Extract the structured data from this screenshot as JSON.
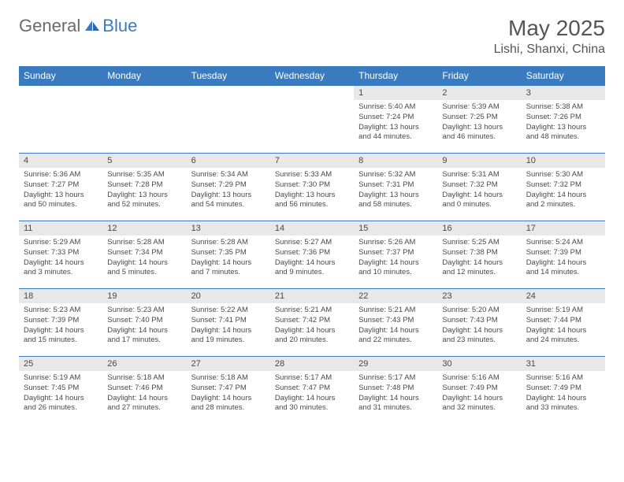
{
  "logo": {
    "general": "General",
    "blue": "Blue"
  },
  "title": "May 2025",
  "location": "Lishi, Shanxi, China",
  "colors": {
    "header_bg": "#3a7bbf",
    "header_fg": "#ffffff",
    "daynum_bg": "#e8e8e8",
    "text": "#494949",
    "border": "#3a7bbf"
  },
  "daysOfWeek": [
    "Sunday",
    "Monday",
    "Tuesday",
    "Wednesday",
    "Thursday",
    "Friday",
    "Saturday"
  ],
  "weeks": [
    [
      null,
      null,
      null,
      null,
      {
        "n": "1",
        "sunrise": "5:40 AM",
        "sunset": "7:24 PM",
        "daylight": "13 hours and 44 minutes."
      },
      {
        "n": "2",
        "sunrise": "5:39 AM",
        "sunset": "7:25 PM",
        "daylight": "13 hours and 46 minutes."
      },
      {
        "n": "3",
        "sunrise": "5:38 AM",
        "sunset": "7:26 PM",
        "daylight": "13 hours and 48 minutes."
      }
    ],
    [
      {
        "n": "4",
        "sunrise": "5:36 AM",
        "sunset": "7:27 PM",
        "daylight": "13 hours and 50 minutes."
      },
      {
        "n": "5",
        "sunrise": "5:35 AM",
        "sunset": "7:28 PM",
        "daylight": "13 hours and 52 minutes."
      },
      {
        "n": "6",
        "sunrise": "5:34 AM",
        "sunset": "7:29 PM",
        "daylight": "13 hours and 54 minutes."
      },
      {
        "n": "7",
        "sunrise": "5:33 AM",
        "sunset": "7:30 PM",
        "daylight": "13 hours and 56 minutes."
      },
      {
        "n": "8",
        "sunrise": "5:32 AM",
        "sunset": "7:31 PM",
        "daylight": "13 hours and 58 minutes."
      },
      {
        "n": "9",
        "sunrise": "5:31 AM",
        "sunset": "7:32 PM",
        "daylight": "14 hours and 0 minutes."
      },
      {
        "n": "10",
        "sunrise": "5:30 AM",
        "sunset": "7:32 PM",
        "daylight": "14 hours and 2 minutes."
      }
    ],
    [
      {
        "n": "11",
        "sunrise": "5:29 AM",
        "sunset": "7:33 PM",
        "daylight": "14 hours and 3 minutes."
      },
      {
        "n": "12",
        "sunrise": "5:28 AM",
        "sunset": "7:34 PM",
        "daylight": "14 hours and 5 minutes."
      },
      {
        "n": "13",
        "sunrise": "5:28 AM",
        "sunset": "7:35 PM",
        "daylight": "14 hours and 7 minutes."
      },
      {
        "n": "14",
        "sunrise": "5:27 AM",
        "sunset": "7:36 PM",
        "daylight": "14 hours and 9 minutes."
      },
      {
        "n": "15",
        "sunrise": "5:26 AM",
        "sunset": "7:37 PM",
        "daylight": "14 hours and 10 minutes."
      },
      {
        "n": "16",
        "sunrise": "5:25 AM",
        "sunset": "7:38 PM",
        "daylight": "14 hours and 12 minutes."
      },
      {
        "n": "17",
        "sunrise": "5:24 AM",
        "sunset": "7:39 PM",
        "daylight": "14 hours and 14 minutes."
      }
    ],
    [
      {
        "n": "18",
        "sunrise": "5:23 AM",
        "sunset": "7:39 PM",
        "daylight": "14 hours and 15 minutes."
      },
      {
        "n": "19",
        "sunrise": "5:23 AM",
        "sunset": "7:40 PM",
        "daylight": "14 hours and 17 minutes."
      },
      {
        "n": "20",
        "sunrise": "5:22 AM",
        "sunset": "7:41 PM",
        "daylight": "14 hours and 19 minutes."
      },
      {
        "n": "21",
        "sunrise": "5:21 AM",
        "sunset": "7:42 PM",
        "daylight": "14 hours and 20 minutes."
      },
      {
        "n": "22",
        "sunrise": "5:21 AM",
        "sunset": "7:43 PM",
        "daylight": "14 hours and 22 minutes."
      },
      {
        "n": "23",
        "sunrise": "5:20 AM",
        "sunset": "7:43 PM",
        "daylight": "14 hours and 23 minutes."
      },
      {
        "n": "24",
        "sunrise": "5:19 AM",
        "sunset": "7:44 PM",
        "daylight": "14 hours and 24 minutes."
      }
    ],
    [
      {
        "n": "25",
        "sunrise": "5:19 AM",
        "sunset": "7:45 PM",
        "daylight": "14 hours and 26 minutes."
      },
      {
        "n": "26",
        "sunrise": "5:18 AM",
        "sunset": "7:46 PM",
        "daylight": "14 hours and 27 minutes."
      },
      {
        "n": "27",
        "sunrise": "5:18 AM",
        "sunset": "7:47 PM",
        "daylight": "14 hours and 28 minutes."
      },
      {
        "n": "28",
        "sunrise": "5:17 AM",
        "sunset": "7:47 PM",
        "daylight": "14 hours and 30 minutes."
      },
      {
        "n": "29",
        "sunrise": "5:17 AM",
        "sunset": "7:48 PM",
        "daylight": "14 hours and 31 minutes."
      },
      {
        "n": "30",
        "sunrise": "5:16 AM",
        "sunset": "7:49 PM",
        "daylight": "14 hours and 32 minutes."
      },
      {
        "n": "31",
        "sunrise": "5:16 AM",
        "sunset": "7:49 PM",
        "daylight": "14 hours and 33 minutes."
      }
    ]
  ]
}
